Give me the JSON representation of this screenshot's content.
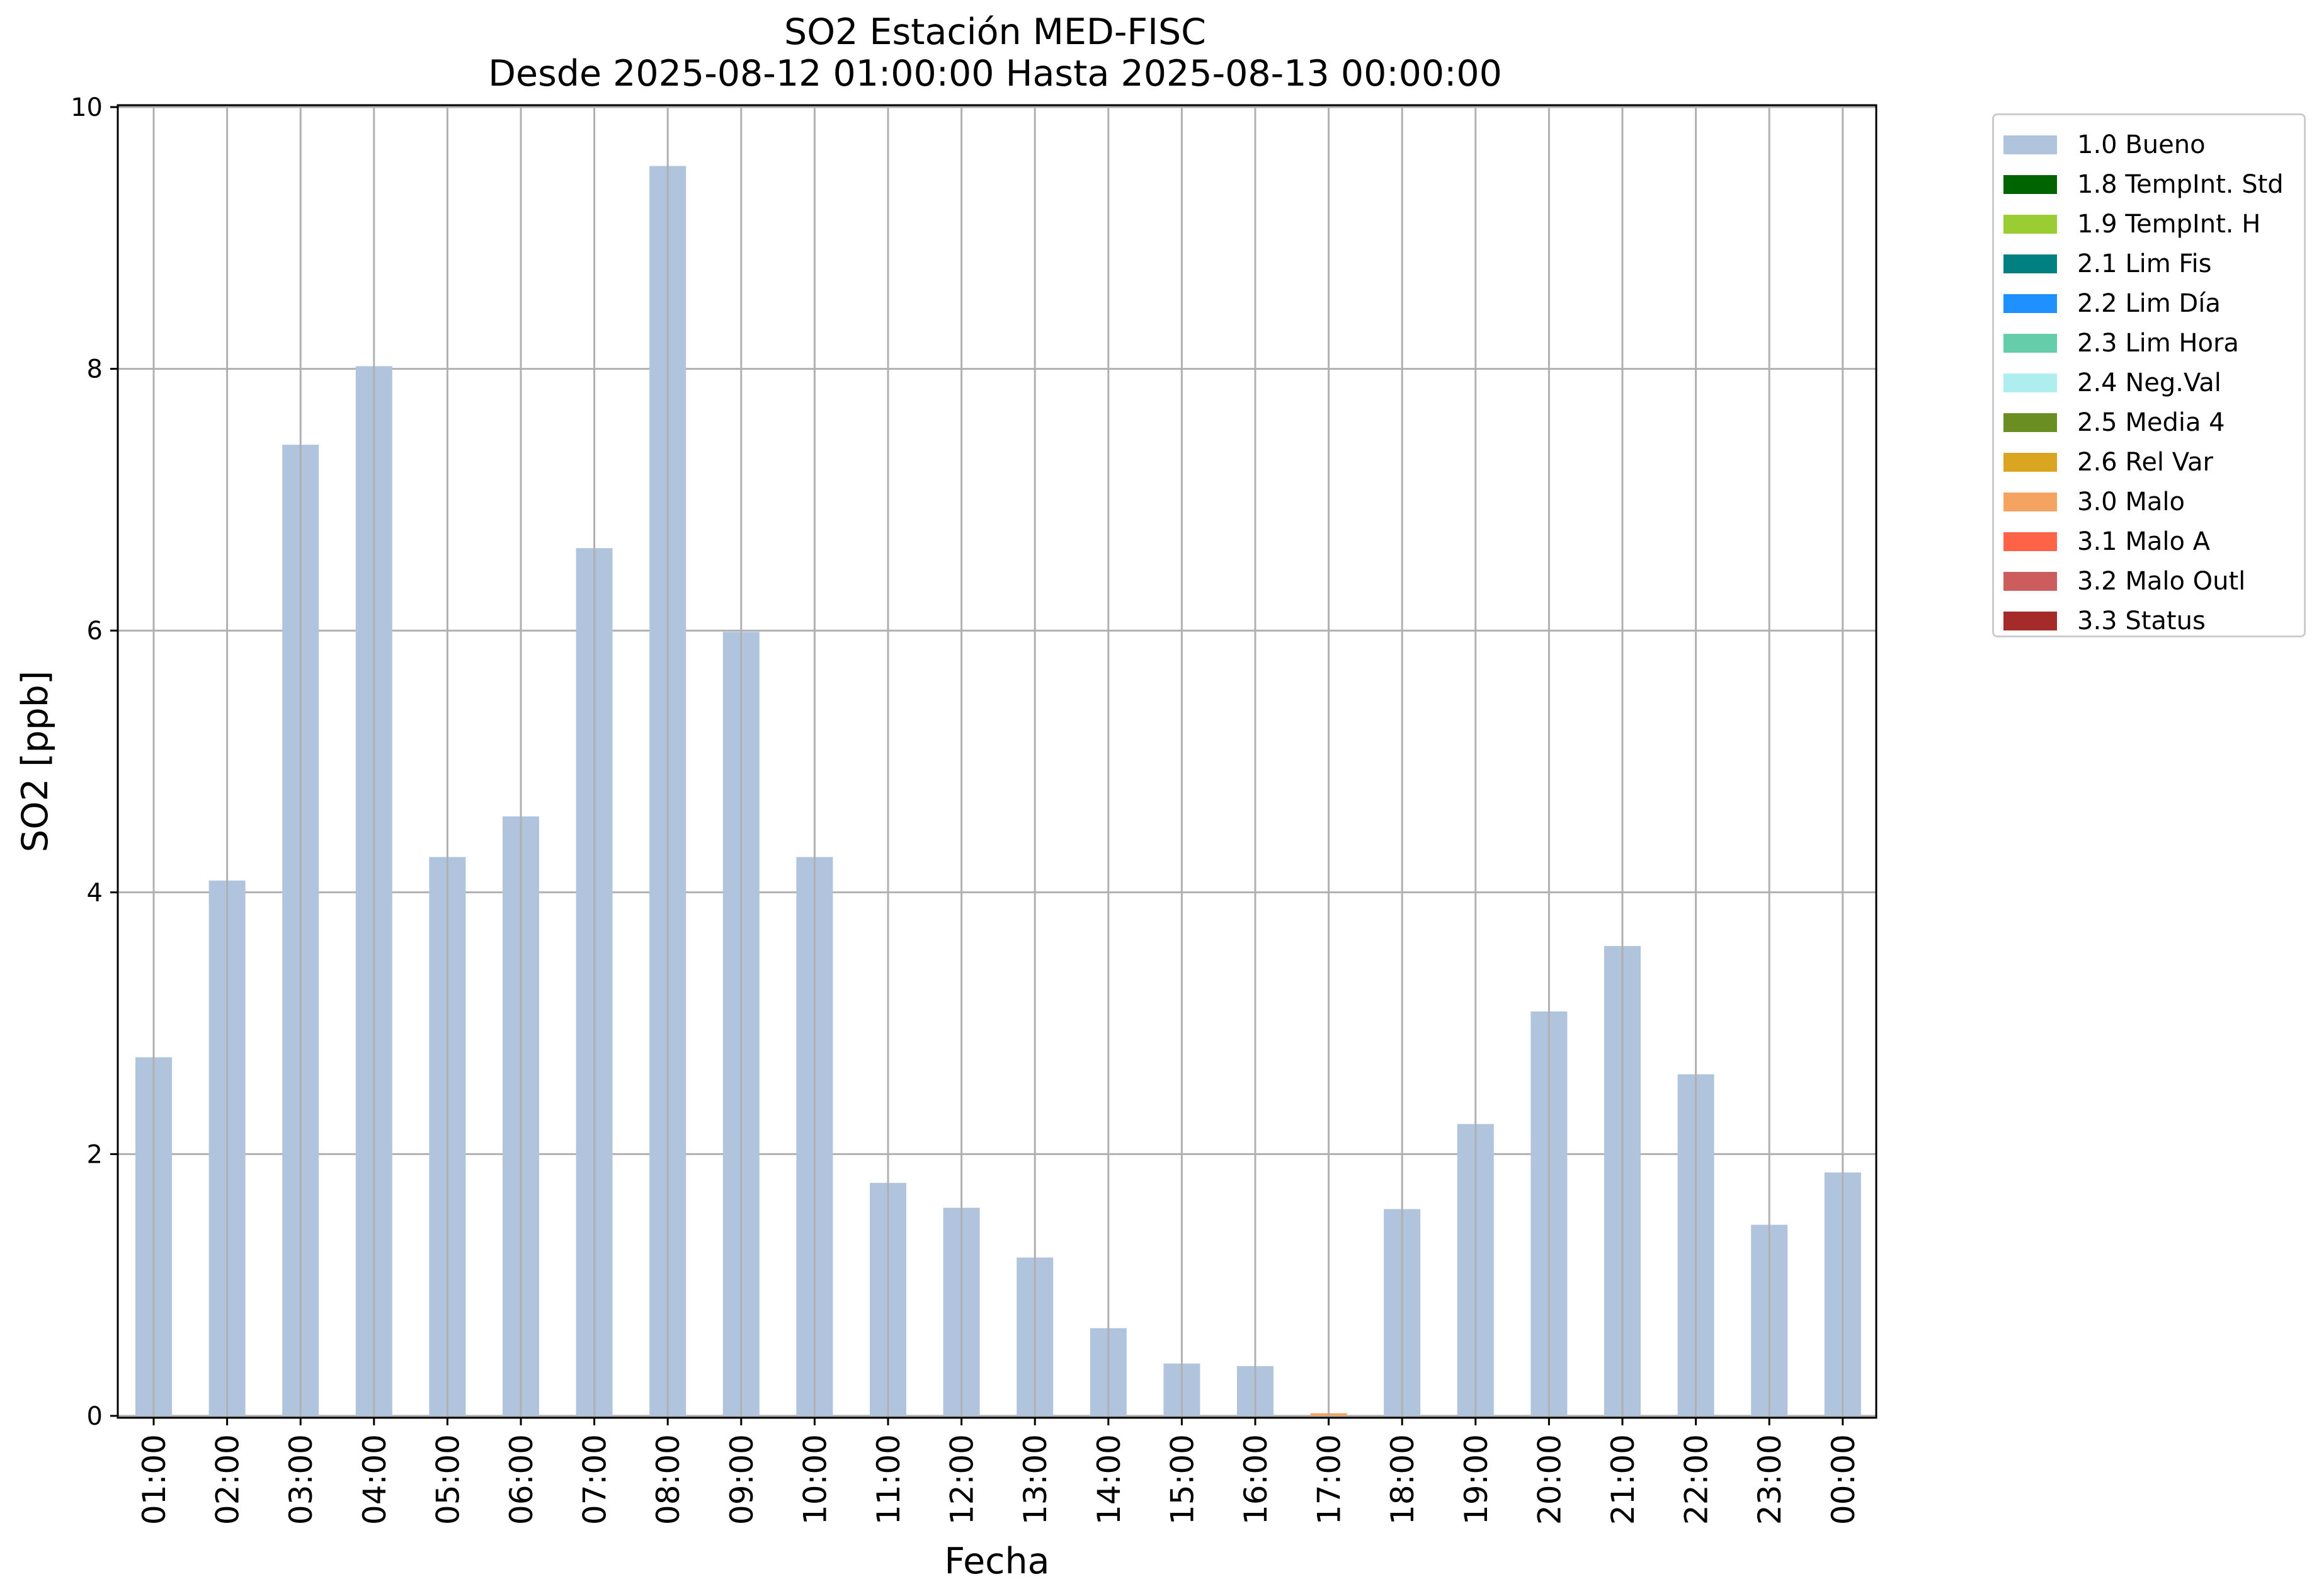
{
  "chart_data": {
    "type": "bar",
    "title": "SO2 Estación MED-FISC",
    "subtitle": "Desde 2025-08-12 01:00:00 Hasta 2025-08-13 00:00:00",
    "xlabel": "Fecha",
    "ylabel": "SO2 [ppb]",
    "ylim": [
      0,
      10
    ],
    "yticks": [
      0,
      2,
      4,
      6,
      8,
      10
    ],
    "grid": true,
    "legend_position": "outside-top-right",
    "categories": [
      "01:00",
      "02:00",
      "03:00",
      "04:00",
      "05:00",
      "06:00",
      "07:00",
      "08:00",
      "09:00",
      "10:00",
      "11:00",
      "12:00",
      "13:00",
      "14:00",
      "15:00",
      "16:00",
      "17:00",
      "18:00",
      "19:00",
      "20:00",
      "21:00",
      "22:00",
      "23:00",
      "00:00"
    ],
    "series": [
      {
        "name": "1.0 Bueno",
        "color": "#b0c4de",
        "values": [
          2.74,
          4.09,
          7.42,
          8.02,
          4.27,
          4.58,
          6.63,
          9.55,
          5.99,
          4.27,
          1.78,
          1.59,
          1.21,
          0.67,
          0.4,
          0.38,
          0,
          1.58,
          2.23,
          3.09,
          3.59,
          2.61,
          1.46,
          1.86
        ]
      },
      {
        "name": "1.8 TempInt. Std",
        "color": "#006400",
        "values": [
          0,
          0,
          0,
          0,
          0,
          0,
          0,
          0,
          0,
          0,
          0,
          0,
          0,
          0,
          0,
          0,
          0,
          0,
          0,
          0,
          0,
          0,
          0,
          0
        ]
      },
      {
        "name": "1.9 TempInt. H",
        "color": "#9acd32",
        "values": [
          0,
          0,
          0,
          0,
          0,
          0,
          0,
          0,
          0,
          0,
          0,
          0,
          0,
          0,
          0,
          0,
          0,
          0,
          0,
          0,
          0,
          0,
          0,
          0
        ]
      },
      {
        "name": "2.1 Lim Fis",
        "color": "#008080",
        "values": [
          0,
          0,
          0,
          0,
          0,
          0,
          0,
          0,
          0,
          0,
          0,
          0,
          0,
          0,
          0,
          0,
          0,
          0,
          0,
          0,
          0,
          0,
          0,
          0
        ]
      },
      {
        "name": "2.2 Lim Día",
        "color": "#1e90ff",
        "values": [
          0,
          0,
          0,
          0,
          0,
          0,
          0,
          0,
          0,
          0,
          0,
          0,
          0,
          0,
          0,
          0,
          0,
          0,
          0,
          0,
          0,
          0,
          0,
          0
        ]
      },
      {
        "name": "2.3 Lim Hora",
        "color": "#66cdaa",
        "values": [
          0,
          0,
          0,
          0,
          0,
          0,
          0,
          0,
          0,
          0,
          0,
          0,
          0,
          0,
          0,
          0,
          0,
          0,
          0,
          0,
          0,
          0,
          0,
          0
        ]
      },
      {
        "name": "2.4 Neg.Val",
        "color": "#afeeee",
        "values": [
          0,
          0,
          0,
          0,
          0,
          0,
          0,
          0,
          0,
          0,
          0,
          0,
          0,
          0,
          0,
          0,
          0,
          0,
          0,
          0,
          0,
          0,
          0,
          0
        ]
      },
      {
        "name": "2.5 Media 4",
        "color": "#6b8e23",
        "values": [
          0,
          0,
          0,
          0,
          0,
          0,
          0,
          0,
          0,
          0,
          0,
          0,
          0,
          0,
          0,
          0,
          0,
          0,
          0,
          0,
          0,
          0,
          0,
          0
        ]
      },
      {
        "name": "2.6 Rel Var",
        "color": "#daa520",
        "values": [
          0,
          0,
          0,
          0,
          0,
          0,
          0,
          0,
          0,
          0,
          0,
          0,
          0,
          0,
          0,
          0,
          0,
          0,
          0,
          0,
          0,
          0,
          0,
          0
        ]
      },
      {
        "name": "3.0 Malo",
        "color": "#f4a460",
        "values": [
          0,
          0,
          0,
          0,
          0,
          0,
          0,
          0,
          0,
          0,
          0,
          0,
          0,
          0,
          0,
          0,
          0.02,
          0,
          0,
          0,
          0,
          0,
          0,
          0
        ]
      },
      {
        "name": "3.1 Malo A",
        "color": "#ff6347",
        "values": [
          0,
          0,
          0,
          0,
          0,
          0,
          0,
          0,
          0,
          0,
          0,
          0,
          0,
          0,
          0,
          0,
          0,
          0,
          0,
          0,
          0,
          0,
          0,
          0
        ]
      },
      {
        "name": "3.2 Malo Outl",
        "color": "#cd5c5c",
        "values": [
          0,
          0,
          0,
          0,
          0,
          0,
          0,
          0,
          0,
          0,
          0,
          0,
          0,
          0,
          0,
          0,
          0,
          0,
          0,
          0,
          0,
          0,
          0,
          0
        ]
      },
      {
        "name": "3.3 Status",
        "color": "#a52a2a",
        "values": [
          0,
          0,
          0,
          0,
          0,
          0,
          0,
          0,
          0,
          0,
          0,
          0,
          0,
          0,
          0,
          0,
          0,
          0,
          0,
          0,
          0,
          0,
          0,
          0
        ]
      }
    ]
  }
}
